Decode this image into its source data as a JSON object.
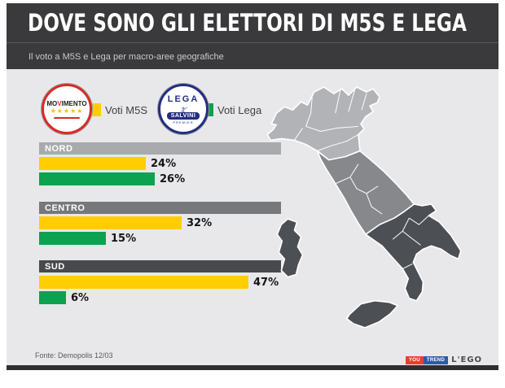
{
  "header": {
    "title": "DOVE SONO GLI ELETTORI DI M5S E LEGA",
    "subtitle": "Il voto a M5S e Lega per macro-aree geografiche"
  },
  "legend": {
    "m5s_label": "Voti M5S",
    "lega_label": "Voti Lega",
    "m5s_color": "#FFCD00",
    "lega_color": "#0CA24F",
    "m5s_logo": {
      "pre": "MO",
      "v": "V",
      "post": "IMENTO",
      "stars": "★★★★★"
    },
    "lega_logo": {
      "top": "LEGA",
      "banner": "SALVINI",
      "sub": "PREMIER"
    }
  },
  "sections": [
    {
      "label": "NORD",
      "header_color": "#A8AAAD",
      "m5s_value": 24,
      "lega_value": 26,
      "m5s_label": "24%",
      "lega_label": "26%"
    },
    {
      "label": "CENTRO",
      "header_color": "#76787B",
      "m5s_value": 32,
      "lega_value": 15,
      "m5s_label": "32%",
      "lega_label": "15%"
    },
    {
      "label": "SUD",
      "header_color": "#47494D",
      "m5s_value": 47,
      "lega_value": 6,
      "m5s_label": "47%",
      "lega_label": "6%"
    }
  ],
  "chart_data": {
    "type": "bar",
    "orientation": "horizontal",
    "title": "DOVE SONO GLI ELETTORI DI M5S E LEGA",
    "subtitle": "Il voto a M5S e Lega per macro-aree geografiche",
    "categories": [
      "NORD",
      "CENTRO",
      "SUD"
    ],
    "series": [
      {
        "name": "Voti M5S",
        "color": "#FFCD00",
        "values": [
          24,
          32,
          47
        ]
      },
      {
        "name": "Voti Lega",
        "color": "#0CA24F",
        "values": [
          26,
          15,
          6
        ]
      }
    ],
    "value_suffix": "%",
    "xlim": [
      0,
      55
    ],
    "grid": false,
    "legend_position": "top",
    "source": "Fonte: Demopolis 12/03"
  },
  "map": {
    "nord_color": "#B1B3B6",
    "centro_color": "#86888B",
    "sud_color": "#4C4F53"
  },
  "footer": {
    "source": "Fonte: Demopolis 12/03",
    "brand_you": "YOU",
    "brand_trend": "TREND",
    "brand_you_color": "#E8402C",
    "brand_trend_color": "#2D5BA8",
    "brand_lego": "L'EGO"
  }
}
